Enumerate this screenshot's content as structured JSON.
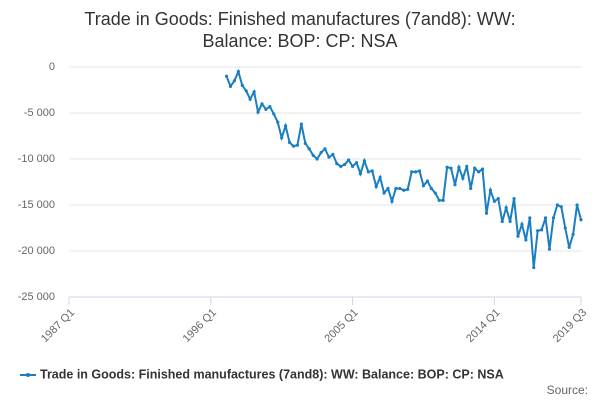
{
  "chart_data": {
    "type": "line",
    "title": "Trade in Goods: Finished manufactures (7and8): WW: Balance: BOP: CP: NSA",
    "categories": [
      "1987 Q1",
      null,
      null,
      null,
      null,
      null,
      null,
      null,
      null,
      null,
      null,
      null,
      null,
      null,
      null,
      null,
      null,
      null,
      null,
      null,
      null,
      null,
      null,
      null,
      null,
      null,
      null,
      null,
      null,
      null,
      null,
      null,
      null,
      null,
      null,
      null,
      "1996 Q1",
      null,
      null,
      null,
      null,
      null,
      null,
      null,
      null,
      null,
      null,
      null,
      null,
      null,
      null,
      null,
      null,
      null,
      null,
      null,
      null,
      null,
      null,
      null,
      null,
      null,
      null,
      null,
      null,
      null,
      null,
      null,
      null,
      null,
      null,
      null,
      "2005 Q1",
      null,
      null,
      null,
      null,
      null,
      null,
      null,
      null,
      null,
      null,
      null,
      null,
      null,
      null,
      null,
      null,
      null,
      null,
      null,
      null,
      null,
      null,
      null,
      null,
      null,
      null,
      null,
      null,
      null,
      null,
      null,
      null,
      null,
      null,
      null,
      "2014 Q1",
      null,
      null,
      null,
      null,
      null,
      null,
      null,
      null,
      null,
      null,
      null,
      null,
      null,
      null,
      null,
      null,
      null,
      null,
      null,
      null,
      null,
      "2019 Q3"
    ],
    "series": [
      {
        "name": "Trade in Goods: Finished manufactures (7and8): WW: Balance: BOP: CP: NSA",
        "color": "#1a7fc1",
        "values": [
          null,
          null,
          null,
          null,
          null,
          null,
          null,
          null,
          null,
          null,
          null,
          null,
          null,
          null,
          null,
          null,
          null,
          null,
          null,
          null,
          null,
          null,
          null,
          null,
          null,
          null,
          null,
          null,
          null,
          null,
          null,
          null,
          null,
          null,
          null,
          null,
          null,
          null,
          null,
          null,
          -1000,
          -2100,
          -1500,
          -500,
          -2000,
          -2600,
          -3500,
          -2700,
          -4900,
          -4000,
          -4600,
          -4300,
          -5100,
          -6000,
          -7700,
          -6400,
          -8200,
          -8600,
          -8500,
          -6200,
          -8300,
          -8900,
          -9600,
          -10000,
          -9300,
          -8900,
          -9800,
          -9500,
          -10500,
          -10800,
          -10600,
          -10100,
          -10800,
          -10400,
          -11600,
          -10200,
          -11400,
          -11300,
          -13000,
          -12000,
          -13700,
          -13200,
          -14600,
          -13200,
          -13200,
          -13400,
          -13300,
          -11400,
          -11400,
          -11300,
          -12900,
          -12400,
          -13200,
          -13700,
          -14500,
          -14500,
          -10900,
          -11000,
          -12800,
          -10900,
          -12100,
          -10800,
          -13200,
          -11000,
          -11400,
          -11100,
          -15900,
          -13400,
          -14600,
          -14300,
          -16800,
          -15300,
          -16800,
          -14300,
          -18400,
          -17100,
          -18800,
          -16400,
          -21800,
          -17800,
          -17700,
          -16400,
          -19800,
          -16400,
          -15000,
          -15200,
          -17500,
          -19600,
          -18200,
          -15000,
          -16600
        ]
      }
    ],
    "ylim": [
      -25000,
      0
    ],
    "yticks": [
      0,
      {
        "value": -5000,
        "label": "-5 000"
      },
      {
        "value": -10000,
        "label": "-10 000"
      },
      {
        "value": -15000,
        "label": "-15 000"
      },
      {
        "value": -20000,
        "label": "-20 000"
      },
      {
        "value": -25000,
        "label": "-25 000"
      }
    ],
    "grid": true,
    "source": "Source:"
  }
}
